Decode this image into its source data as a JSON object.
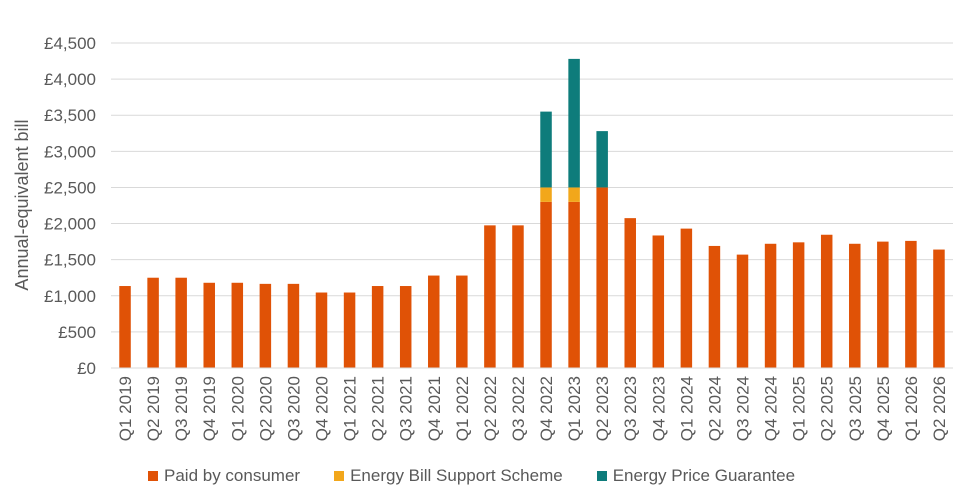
{
  "chart_data": {
    "type": "bar",
    "stacked": true,
    "ylabel": "Annual-equivalent bill",
    "xlabel": "",
    "ylim": [
      0,
      4500
    ],
    "yticks": [
      "£0",
      "£500",
      "£1,000",
      "£1,500",
      "£2,000",
      "£2,500",
      "£3,000",
      "£3,500",
      "£4,000",
      "£4,500"
    ],
    "ytick_values": [
      0,
      500,
      1000,
      1500,
      2000,
      2500,
      3000,
      3500,
      4000,
      4500
    ],
    "grid": true,
    "legend_position": "bottom",
    "categories": [
      "Q1 2019",
      "Q2 2019",
      "Q3 2019",
      "Q4 2019",
      "Q1 2020",
      "Q2 2020",
      "Q3 2020",
      "Q4 2020",
      "Q1 2021",
      "Q2 2021",
      "Q3 2021",
      "Q4 2021",
      "Q1 2022",
      "Q2 2022",
      "Q3 2022",
      "Q4 2022",
      "Q1 2023",
      "Q2 2023",
      "Q3 2023",
      "Q4 2023",
      "Q1 2024",
      "Q2 2024",
      "Q3 2024",
      "Q4 2024",
      "Q1 2025",
      "Q2 2025",
      "Q3 2025",
      "Q4 2025",
      "Q1 2026",
      "Q2 2026"
    ],
    "series": [
      {
        "name": "Paid by consumer",
        "color": "#E05206",
        "values": [
          1135,
          1250,
          1250,
          1180,
          1180,
          1165,
          1165,
          1045,
          1045,
          1135,
          1135,
          1280,
          1280,
          1975,
          1975,
          2300,
          2300,
          2500,
          2075,
          1835,
          1930,
          1690,
          1570,
          1720,
          1740,
          1845,
          1720,
          1750,
          1760,
          1640
        ]
      },
      {
        "name": "Energy Bill Support Scheme",
        "color": "#F2A71B",
        "values": [
          0,
          0,
          0,
          0,
          0,
          0,
          0,
          0,
          0,
          0,
          0,
          0,
          0,
          0,
          0,
          200,
          200,
          0,
          0,
          0,
          0,
          0,
          0,
          0,
          0,
          0,
          0,
          0,
          0,
          0
        ]
      },
      {
        "name": "Energy Price Guarantee",
        "color": "#0E7C7B",
        "values": [
          0,
          0,
          0,
          0,
          0,
          0,
          0,
          0,
          0,
          0,
          0,
          0,
          0,
          0,
          0,
          1050,
          1780,
          780,
          0,
          0,
          0,
          0,
          0,
          0,
          0,
          0,
          0,
          0,
          0,
          0
        ]
      }
    ]
  }
}
